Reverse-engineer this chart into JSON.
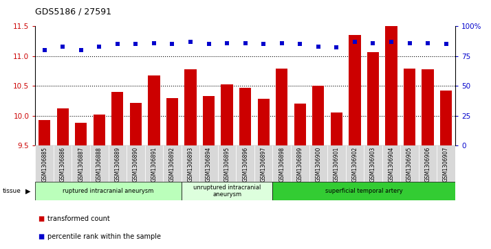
{
  "title": "GDS5186 / 27591",
  "samples": [
    "GSM1306885",
    "GSM1306886",
    "GSM1306887",
    "GSM1306888",
    "GSM1306889",
    "GSM1306890",
    "GSM1306891",
    "GSM1306892",
    "GSM1306893",
    "GSM1306894",
    "GSM1306895",
    "GSM1306896",
    "GSM1306897",
    "GSM1306898",
    "GSM1306899",
    "GSM1306900",
    "GSM1306901",
    "GSM1306902",
    "GSM1306903",
    "GSM1306904",
    "GSM1306905",
    "GSM1306906",
    "GSM1306907"
  ],
  "transformed_count": [
    9.93,
    10.12,
    9.88,
    10.02,
    10.4,
    10.22,
    10.67,
    10.3,
    10.78,
    10.33,
    10.53,
    10.47,
    10.28,
    10.79,
    10.2,
    10.5,
    10.06,
    11.35,
    11.07,
    11.5,
    10.79,
    10.78,
    10.42
  ],
  "percentile_rank": [
    80,
    83,
    80,
    83,
    85,
    85,
    86,
    85,
    87,
    85,
    86,
    86,
    85,
    86,
    85,
    83,
    82,
    87,
    86,
    87,
    86,
    86,
    85
  ],
  "groups": [
    {
      "label": "ruptured intracranial aneurysm",
      "start": 0,
      "end": 8,
      "color": "#bbffbb"
    },
    {
      "label": "unruptured intracranial\naneurysm",
      "start": 8,
      "end": 13,
      "color": "#ddffdd"
    },
    {
      "label": "superficial temporal artery",
      "start": 13,
      "end": 23,
      "color": "#33cc33"
    }
  ],
  "tissue_label": "tissue",
  "bar_color": "#cc0000",
  "dot_color": "#0000cc",
  "ylim_left": [
    9.5,
    11.5
  ],
  "ylim_right": [
    0,
    100
  ],
  "yticks_left": [
    9.5,
    10.0,
    10.5,
    11.0,
    11.5
  ],
  "yticks_right": [
    0,
    25,
    50,
    75,
    100
  ],
  "ytick_labels_right": [
    "0",
    "25",
    "50",
    "75",
    "100%"
  ],
  "grid_values": [
    10.0,
    10.5,
    11.0
  ],
  "cell_color": "#d8d8d8",
  "legend_items": [
    {
      "label": "transformed count",
      "color": "#cc0000"
    },
    {
      "label": "percentile rank within the sample",
      "color": "#0000cc"
    }
  ]
}
